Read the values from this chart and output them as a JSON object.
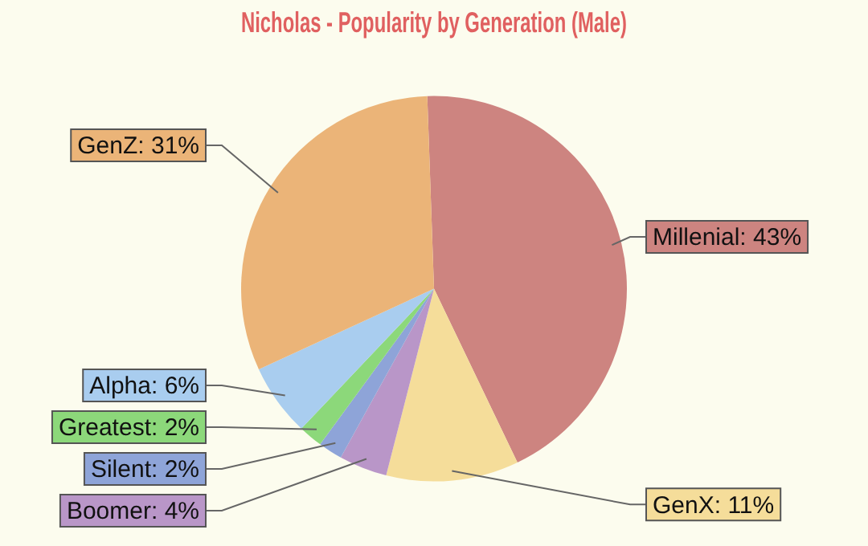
{
  "chart_data": {
    "type": "pie",
    "title": "Nicholas - Popularity by Generation (Male)",
    "categories": [
      "Millenial",
      "GenX",
      "Boomer",
      "Silent",
      "Greatest",
      "Alpha",
      "GenZ"
    ],
    "values": [
      43,
      11,
      4,
      2,
      2,
      6,
      31
    ],
    "value_labels": [
      "43%",
      "11%",
      "4%",
      "2%",
      "2%",
      "6%",
      "31%"
    ],
    "colors": [
      "#cd8480",
      "#f5dd9a",
      "#b996c8",
      "#8ea4d8",
      "#8cd87a",
      "#a9cdef",
      "#ebb478"
    ],
    "legend": false
  }
}
